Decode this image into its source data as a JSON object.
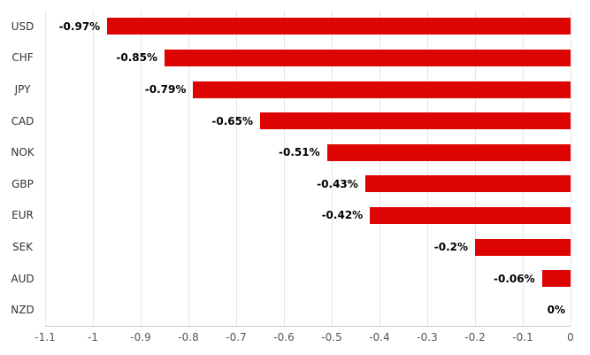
{
  "chart_data": {
    "type": "bar",
    "orientation": "horizontal",
    "title": "",
    "xlabel": "",
    "ylabel": "",
    "categories": [
      "USD",
      "CHF",
      "JPY",
      "CAD",
      "NOK",
      "GBP",
      "EUR",
      "SEK",
      "AUD",
      "NZD"
    ],
    "values": [
      -0.97,
      -0.85,
      -0.79,
      -0.65,
      -0.51,
      -0.43,
      -0.42,
      -0.2,
      -0.06,
      0
    ],
    "value_labels": [
      "-0.97%",
      "-0.85%",
      "-0.79%",
      "-0.65%",
      "-0.51%",
      "-0.43%",
      "-0.42%",
      "-0.2%",
      "-0.06%",
      "0%"
    ],
    "xlim": [
      -1.1,
      0
    ],
    "x_ticks": [
      -1.1,
      -1,
      -0.9,
      -0.8,
      -0.7,
      -0.6,
      -0.5,
      -0.4,
      -0.3,
      -0.2,
      -0.1,
      0
    ],
    "x_tick_labels": [
      "-1.1",
      "-1",
      "-0.9",
      "-0.8",
      "-0.7",
      "-0.6",
      "-0.5",
      "-0.4",
      "-0.3",
      "-0.2",
      "-0.1",
      "0"
    ],
    "grid": true,
    "legend": false,
    "colors": {
      "bar": "#dd0404",
      "grid": "#e6e6e6",
      "axis_line": "#cccccc",
      "category_label": "#333333",
      "tick_label": "#555555",
      "value_label": "#000000",
      "background": "#ffffff"
    }
  }
}
